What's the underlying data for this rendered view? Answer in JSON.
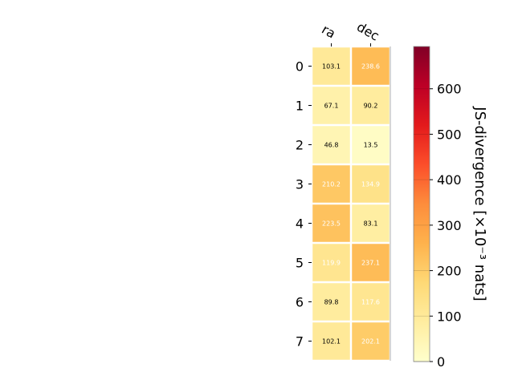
{
  "chart_data": {
    "type": "heatmap",
    "columns": [
      "ra",
      "dec"
    ],
    "rows": [
      "0",
      "1",
      "2",
      "3",
      "4",
      "5",
      "6",
      "7"
    ],
    "values": [
      [
        103.1,
        238.6
      ],
      [
        67.1,
        90.2
      ],
      [
        46.8,
        13.5
      ],
      [
        210.2,
        134.9
      ],
      [
        223.5,
        83.1
      ],
      [
        119.9,
        237.1
      ],
      [
        89.8,
        117.6
      ],
      [
        102.1,
        202.1
      ]
    ],
    "value_labels": [
      [
        "103.1",
        "238.6"
      ],
      [
        "67.1",
        "90.2"
      ],
      [
        "46.8",
        "13.5"
      ],
      [
        "210.2",
        "134.9"
      ],
      [
        "223.5",
        "83.1"
      ],
      [
        "119.9",
        "237.1"
      ],
      [
        "89.8",
        "117.6"
      ],
      [
        "102.1",
        "202.1"
      ]
    ],
    "colorbar": {
      "label": "JS-divergence [×10⁻³ nats]",
      "range": [
        0,
        693
      ],
      "ticks": [
        "0",
        "100",
        "200",
        "300",
        "400",
        "500",
        "600"
      ],
      "colormap": "YlOrRd",
      "stops": [
        "#ffffcc",
        "#ffeda0",
        "#fed976",
        "#feb24c",
        "#fd8d3c",
        "#fc4e2a",
        "#e31a1c",
        "#bd0026",
        "#800026"
      ]
    }
  }
}
